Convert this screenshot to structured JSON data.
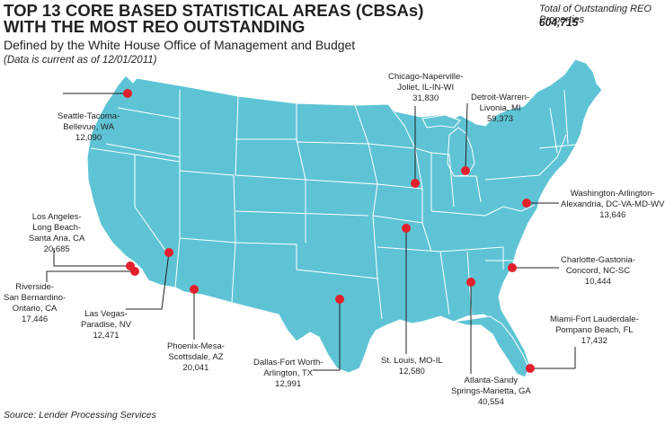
{
  "header": {
    "title_line1": "TOP 13 CORE BASED STATISTICAL AREAS (CBSAs)",
    "title_line2": "WITH THE MOST REO OUTSTANDING",
    "subtitle": "Defined by the White House Office of Management and Budget",
    "note": "(Data is current as of 12/01/2011)"
  },
  "total": {
    "label": "Total of Outstanding REO Properties",
    "value": "604,715"
  },
  "source": "Source: Lender Processing Services",
  "colors": {
    "land": "#5ec4d5",
    "border": "#ffffff",
    "marker": "#e2202c",
    "leader": "#231f20"
  },
  "markers": [
    {
      "name_lines": [
        "Seattle-Tacoma-",
        "Bellevue, WA"
      ],
      "value": "12,090",
      "lon": -122.3,
      "lat": 47.6
    },
    {
      "name_lines": [
        "Los Angeles-",
        "Long Beach-",
        "Santa Ana, CA"
      ],
      "value": "20,685",
      "lon": -118.2,
      "lat": 34.05
    },
    {
      "name_lines": [
        "Riverside-",
        "San Bernardino-",
        "Ontario, CA"
      ],
      "value": "17,446",
      "lon": -117.3,
      "lat": 34.0
    },
    {
      "name_lines": [
        "Las Vegas-",
        "Paradise, NV"
      ],
      "value": "12,471",
      "lon": -115.15,
      "lat": 36.17
    },
    {
      "name_lines": [
        "Phoenix-Mesa-",
        "Scottsdale, AZ"
      ],
      "value": "20,041",
      "lon": -112.07,
      "lat": 33.45
    },
    {
      "name_lines": [
        "Dallas-Fort Worth-",
        "Arlington, TX"
      ],
      "value": "12,991",
      "lon": -96.8,
      "lat": 32.78
    },
    {
      "name_lines": [
        "Chicago-Naperville-",
        "Joliet, IL-IN-WI"
      ],
      "value": "31,830",
      "lon": -87.63,
      "lat": 41.88
    },
    {
      "name_lines": [
        "Detroit-Warren-",
        "Livonia, MI"
      ],
      "value": "59,373",
      "lon": -83.05,
      "lat": 42.33
    },
    {
      "name_lines": [
        "St. Louis, MO-IL"
      ],
      "value": "12,580",
      "lon": -90.2,
      "lat": 38.63
    },
    {
      "name_lines": [
        "Atlanta-Sandy",
        "Springs-Marietta, GA"
      ],
      "value": "40,554",
      "lon": -84.39,
      "lat": 33.75
    },
    {
      "name_lines": [
        "Washington-Arlington-",
        "Alexandria, DC-VA-MD-WV"
      ],
      "value": "13,646",
      "lon": -77.04,
      "lat": 38.9
    },
    {
      "name_lines": [
        "Charlotte-Gastonia-",
        "Concord, NC-SC"
      ],
      "value": "10,444",
      "lon": -80.84,
      "lat": 35.23
    },
    {
      "name_lines": [
        "Miami-Fort Lauderdale-",
        "Pompano Beach, FL"
      ],
      "value": "17,432",
      "lon": -80.19,
      "lat": 25.77
    }
  ]
}
